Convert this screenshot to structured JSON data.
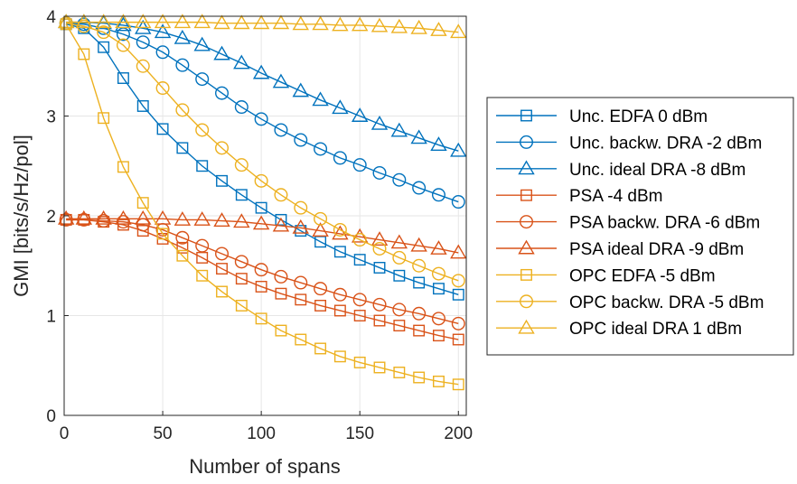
{
  "chart_data": {
    "type": "line",
    "title": "",
    "xlabel": "Number of spans",
    "ylabel": "GMI [bits/s/Hz/pol]",
    "xlim": [
      0,
      204
    ],
    "ylim": [
      0,
      4
    ],
    "xticks": [
      0,
      50,
      100,
      150,
      200
    ],
    "yticks": [
      0,
      1,
      2,
      3,
      4
    ],
    "grid": true,
    "legend_position": "outside-right",
    "x": [
      1,
      10,
      20,
      30,
      40,
      50,
      60,
      70,
      80,
      90,
      100,
      110,
      120,
      130,
      140,
      150,
      160,
      170,
      180,
      190,
      200
    ],
    "series": [
      {
        "name": "Unc. EDFA 0 dBm",
        "color": "#0072BD",
        "marker": "square",
        "values": [
          3.92,
          3.88,
          3.69,
          3.38,
          3.1,
          2.87,
          2.68,
          2.5,
          2.35,
          2.21,
          2.08,
          1.96,
          1.85,
          1.74,
          1.64,
          1.56,
          1.48,
          1.4,
          1.33,
          1.27,
          1.21
        ]
      },
      {
        "name": "Unc. backw. DRA -2 dBm",
        "color": "#0072BD",
        "marker": "circle",
        "values": [
          3.93,
          3.92,
          3.88,
          3.82,
          3.74,
          3.64,
          3.51,
          3.37,
          3.23,
          3.09,
          2.97,
          2.86,
          2.76,
          2.67,
          2.58,
          2.51,
          2.43,
          2.36,
          2.28,
          2.21,
          2.14
        ]
      },
      {
        "name": "Unc. ideal DRA -8 dBm",
        "color": "#0072BD",
        "marker": "triangle",
        "values": [
          3.94,
          3.94,
          3.93,
          3.91,
          3.88,
          3.84,
          3.78,
          3.71,
          3.62,
          3.53,
          3.43,
          3.34,
          3.25,
          3.16,
          3.08,
          3.0,
          2.92,
          2.85,
          2.78,
          2.71,
          2.65
        ]
      },
      {
        "name": "PSA -4 dBm",
        "color": "#D95319",
        "marker": "square",
        "values": [
          1.96,
          1.96,
          1.94,
          1.91,
          1.85,
          1.77,
          1.68,
          1.58,
          1.47,
          1.37,
          1.29,
          1.22,
          1.16,
          1.1,
          1.05,
          1.0,
          0.95,
          0.9,
          0.85,
          0.8,
          0.76
        ]
      },
      {
        "name": "PSA backw. DRA -6 dBm",
        "color": "#D95319",
        "marker": "circle",
        "values": [
          1.96,
          1.96,
          1.95,
          1.94,
          1.91,
          1.86,
          1.78,
          1.7,
          1.62,
          1.54,
          1.46,
          1.39,
          1.33,
          1.27,
          1.21,
          1.16,
          1.11,
          1.06,
          1.02,
          0.97,
          0.92
        ]
      },
      {
        "name": "PSA ideal DRA -9 dBm",
        "color": "#D95319",
        "marker": "triangle",
        "values": [
          1.97,
          1.97,
          1.97,
          1.97,
          1.97,
          1.97,
          1.96,
          1.96,
          1.95,
          1.94,
          1.92,
          1.9,
          1.88,
          1.85,
          1.82,
          1.79,
          1.76,
          1.73,
          1.7,
          1.67,
          1.63
        ]
      },
      {
        "name": "OPC EDFA -5 dBm",
        "color": "#EDB120",
        "marker": "square",
        "values": [
          3.92,
          3.62,
          2.98,
          2.49,
          2.13,
          1.82,
          1.6,
          1.4,
          1.24,
          1.1,
          0.97,
          0.85,
          0.76,
          0.67,
          0.59,
          0.53,
          0.48,
          0.43,
          0.38,
          0.34,
          0.31
        ]
      },
      {
        "name": "OPC backw. DRA -5 dBm",
        "color": "#EDB120",
        "marker": "circle",
        "values": [
          3.93,
          3.9,
          3.84,
          3.71,
          3.5,
          3.28,
          3.06,
          2.86,
          2.68,
          2.51,
          2.35,
          2.21,
          2.08,
          1.97,
          1.86,
          1.76,
          1.67,
          1.58,
          1.5,
          1.42,
          1.35
        ]
      },
      {
        "name": "OPC ideal DRA 1 dBm",
        "color": "#EDB120",
        "marker": "triangle",
        "values": [
          3.94,
          3.94,
          3.94,
          3.94,
          3.94,
          3.94,
          3.94,
          3.94,
          3.93,
          3.93,
          3.93,
          3.93,
          3.92,
          3.92,
          3.91,
          3.91,
          3.9,
          3.89,
          3.88,
          3.86,
          3.84
        ]
      }
    ]
  }
}
